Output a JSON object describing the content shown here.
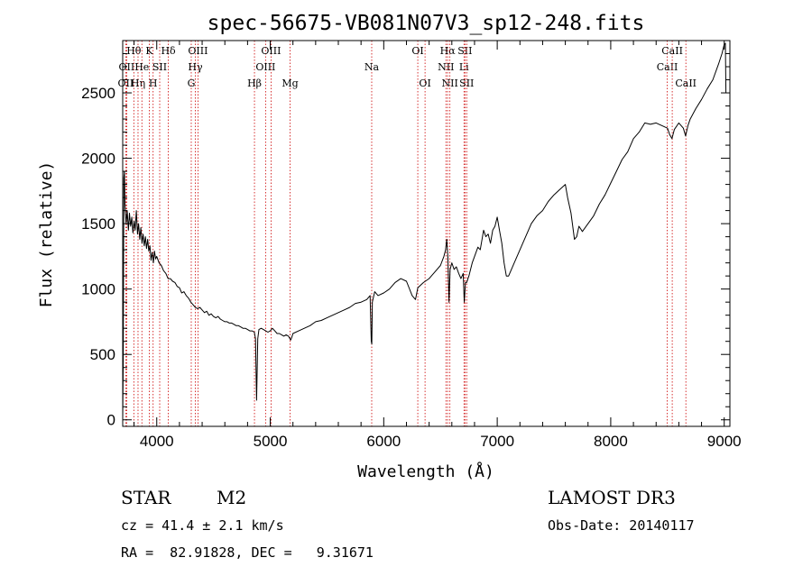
{
  "chart_data": {
    "type": "line",
    "title": "spec-56675-VB081N07V3_sp12-248.fits",
    "xlabel": "Wavelength (Å)",
    "ylabel": "Flux (relative)",
    "xlim": [
      3700,
      9050
    ],
    "ylim": [
      -50,
      2900
    ],
    "xticks": [
      4000,
      5000,
      6000,
      7000,
      8000,
      9000
    ],
    "yticks": [
      0,
      500,
      1000,
      1500,
      2000,
      2500
    ],
    "series": [
      {
        "name": "flux",
        "color": "#000000",
        "points": [
          [
            3700,
            0
          ],
          [
            3705,
            450
          ],
          [
            3710,
            1850
          ],
          [
            3715,
            1900
          ],
          [
            3720,
            1650
          ],
          [
            3730,
            1500
          ],
          [
            3740,
            1600
          ],
          [
            3750,
            1450
          ],
          [
            3760,
            1580
          ],
          [
            3770,
            1480
          ],
          [
            3780,
            1550
          ],
          [
            3790,
            1430
          ],
          [
            3800,
            1520
          ],
          [
            3810,
            1450
          ],
          [
            3820,
            1600
          ],
          [
            3830,
            1420
          ],
          [
            3840,
            1500
          ],
          [
            3850,
            1380
          ],
          [
            3860,
            1470
          ],
          [
            3870,
            1350
          ],
          [
            3880,
            1420
          ],
          [
            3890,
            1330
          ],
          [
            3900,
            1400
          ],
          [
            3910,
            1310
          ],
          [
            3920,
            1380
          ],
          [
            3930,
            1290
          ],
          [
            3940,
            1330
          ],
          [
            3950,
            1220
          ],
          [
            3960,
            1280
          ],
          [
            3970,
            1200
          ],
          [
            3980,
            1290
          ],
          [
            3990,
            1230
          ],
          [
            4000,
            1250
          ],
          [
            4020,
            1200
          ],
          [
            4040,
            1180
          ],
          [
            4060,
            1140
          ],
          [
            4080,
            1120
          ],
          [
            4100,
            1080
          ],
          [
            4120,
            1080
          ],
          [
            4140,
            1060
          ],
          [
            4160,
            1050
          ],
          [
            4180,
            1020
          ],
          [
            4200,
            1010
          ],
          [
            4220,
            970
          ],
          [
            4240,
            980
          ],
          [
            4260,
            950
          ],
          [
            4280,
            930
          ],
          [
            4300,
            900
          ],
          [
            4320,
            880
          ],
          [
            4340,
            860
          ],
          [
            4360,
            850
          ],
          [
            4380,
            860
          ],
          [
            4400,
            840
          ],
          [
            4420,
            820
          ],
          [
            4440,
            830
          ],
          [
            4460,
            800
          ],
          [
            4480,
            810
          ],
          [
            4500,
            790
          ],
          [
            4520,
            780
          ],
          [
            4540,
            790
          ],
          [
            4560,
            770
          ],
          [
            4580,
            760
          ],
          [
            4600,
            750
          ],
          [
            4620,
            750
          ],
          [
            4640,
            740
          ],
          [
            4660,
            740
          ],
          [
            4680,
            730
          ],
          [
            4700,
            720
          ],
          [
            4720,
            720
          ],
          [
            4740,
            710
          ],
          [
            4760,
            700
          ],
          [
            4780,
            700
          ],
          [
            4800,
            690
          ],
          [
            4820,
            680
          ],
          [
            4840,
            680
          ],
          [
            4860,
            670
          ],
          [
            4870,
            620
          ],
          [
            4880,
            150
          ],
          [
            4890,
            620
          ],
          [
            4900,
            690
          ],
          [
            4920,
            700
          ],
          [
            4940,
            690
          ],
          [
            4960,
            680
          ],
          [
            4980,
            670
          ],
          [
            5000,
            680
          ],
          [
            5020,
            700
          ],
          [
            5040,
            680
          ],
          [
            5060,
            660
          ],
          [
            5080,
            660
          ],
          [
            5100,
            650
          ],
          [
            5120,
            640
          ],
          [
            5140,
            650
          ],
          [
            5160,
            640
          ],
          [
            5180,
            610
          ],
          [
            5190,
            630
          ],
          [
            5200,
            660
          ],
          [
            5250,
            680
          ],
          [
            5300,
            700
          ],
          [
            5350,
            720
          ],
          [
            5400,
            750
          ],
          [
            5450,
            760
          ],
          [
            5500,
            780
          ],
          [
            5550,
            800
          ],
          [
            5600,
            820
          ],
          [
            5650,
            840
          ],
          [
            5700,
            860
          ],
          [
            5750,
            890
          ],
          [
            5800,
            900
          ],
          [
            5850,
            920
          ],
          [
            5880,
            950
          ],
          [
            5890,
            600
          ],
          [
            5895,
            580
          ],
          [
            5900,
            900
          ],
          [
            5920,
            980
          ],
          [
            5950,
            950
          ],
          [
            6000,
            970
          ],
          [
            6050,
            1000
          ],
          [
            6100,
            1050
          ],
          [
            6150,
            1080
          ],
          [
            6200,
            1060
          ],
          [
            6250,
            950
          ],
          [
            6280,
            920
          ],
          [
            6300,
            1010
          ],
          [
            6350,
            1050
          ],
          [
            6400,
            1080
          ],
          [
            6450,
            1130
          ],
          [
            6500,
            1180
          ],
          [
            6530,
            1250
          ],
          [
            6545,
            1300
          ],
          [
            6555,
            1380
          ],
          [
            6565,
            1250
          ],
          [
            6575,
            900
          ],
          [
            6585,
            1150
          ],
          [
            6600,
            1200
          ],
          [
            6620,
            1150
          ],
          [
            6640,
            1170
          ],
          [
            6660,
            1120
          ],
          [
            6680,
            1080
          ],
          [
            6700,
            1120
          ],
          [
            6710,
            900
          ],
          [
            6720,
            1050
          ],
          [
            6730,
            1050
          ],
          [
            6750,
            1100
          ],
          [
            6780,
            1200
          ],
          [
            6800,
            1250
          ],
          [
            6830,
            1320
          ],
          [
            6850,
            1300
          ],
          [
            6880,
            1450
          ],
          [
            6900,
            1400
          ],
          [
            6920,
            1420
          ],
          [
            6940,
            1350
          ],
          [
            6960,
            1450
          ],
          [
            6980,
            1480
          ],
          [
            7000,
            1550
          ],
          [
            7020,
            1450
          ],
          [
            7040,
            1350
          ],
          [
            7060,
            1200
          ],
          [
            7080,
            1100
          ],
          [
            7100,
            1100
          ],
          [
            7150,
            1200
          ],
          [
            7200,
            1300
          ],
          [
            7250,
            1400
          ],
          [
            7300,
            1500
          ],
          [
            7350,
            1560
          ],
          [
            7400,
            1600
          ],
          [
            7450,
            1670
          ],
          [
            7500,
            1720
          ],
          [
            7550,
            1760
          ],
          [
            7600,
            1800
          ],
          [
            7620,
            1700
          ],
          [
            7650,
            1580
          ],
          [
            7680,
            1380
          ],
          [
            7700,
            1400
          ],
          [
            7720,
            1480
          ],
          [
            7750,
            1440
          ],
          [
            7800,
            1500
          ],
          [
            7850,
            1560
          ],
          [
            7900,
            1650
          ],
          [
            7950,
            1720
          ],
          [
            8000,
            1810
          ],
          [
            8050,
            1900
          ],
          [
            8100,
            1990
          ],
          [
            8150,
            2050
          ],
          [
            8200,
            2150
          ],
          [
            8250,
            2200
          ],
          [
            8300,
            2270
          ],
          [
            8350,
            2260
          ],
          [
            8400,
            2270
          ],
          [
            8450,
            2250
          ],
          [
            8500,
            2230
          ],
          [
            8520,
            2180
          ],
          [
            8540,
            2150
          ],
          [
            8560,
            2220
          ],
          [
            8600,
            2270
          ],
          [
            8640,
            2230
          ],
          [
            8660,
            2170
          ],
          [
            8680,
            2250
          ],
          [
            8700,
            2300
          ],
          [
            8750,
            2380
          ],
          [
            8800,
            2450
          ],
          [
            8850,
            2530
          ],
          [
            8900,
            2600
          ],
          [
            8950,
            2720
          ],
          [
            8980,
            2800
          ],
          [
            9000,
            2870
          ],
          [
            9010,
            2880
          ],
          [
            9015,
            2500
          ]
        ]
      }
    ],
    "lines": [
      {
        "wave": 3727,
        "label": "OII",
        "row": 2
      },
      {
        "wave": 3735,
        "label": "OII",
        "row": 1
      },
      {
        "wave": 3798,
        "label": "Hθ",
        "row": 0
      },
      {
        "wave": 3835,
        "label": "Hη",
        "row": 2
      },
      {
        "wave": 3869,
        "label": "He",
        "row": 1
      },
      {
        "wave": 3934,
        "label": "K",
        "row": 0
      },
      {
        "wave": 3968,
        "label": "H",
        "row": 2
      },
      {
        "wave": 4026,
        "label": "SII",
        "row": 1
      },
      {
        "wave": 4102,
        "label": "Hδ",
        "row": 0
      },
      {
        "wave": 4304,
        "label": "G",
        "row": 2
      },
      {
        "wave": 4340,
        "label": "Hγ",
        "row": 1
      },
      {
        "wave": 4363,
        "label": "OIII",
        "row": 0
      },
      {
        "wave": 4861,
        "label": "Hβ",
        "row": 2
      },
      {
        "wave": 4959,
        "label": "OIII",
        "row": 1
      },
      {
        "wave": 5007,
        "label": "OIII",
        "row": 0
      },
      {
        "wave": 5175,
        "label": "Mg",
        "row": 2
      },
      {
        "wave": 5894,
        "label": "Na",
        "row": 1
      },
      {
        "wave": 6300,
        "label": "OI",
        "row": 0
      },
      {
        "wave": 6364,
        "label": "OI",
        "row": 2
      },
      {
        "wave": 6548,
        "label": "NII",
        "row": 1
      },
      {
        "wave": 6563,
        "label": "Hα",
        "row": 0
      },
      {
        "wave": 6583,
        "label": "NII",
        "row": 2
      },
      {
        "wave": 6707,
        "label": "Li",
        "row": 1
      },
      {
        "wave": 6716,
        "label": "SII",
        "row": 0
      },
      {
        "wave": 6731,
        "label": "SII",
        "row": 2
      },
      {
        "wave": 8498,
        "label": "CaII",
        "row": 1
      },
      {
        "wave": 8542,
        "label": "CaII",
        "row": 0
      },
      {
        "wave": 8662,
        "label": "CaII",
        "row": 2
      }
    ],
    "line_marker_color": "#cc0000"
  },
  "info": {
    "object_class": "STAR",
    "subclass": "M2",
    "cz": "cz = 41.4 ± 2.1 km/s",
    "coords": "RA =  82.91828, DEC =   9.31671",
    "survey": "LAMOST DR3",
    "obs_date": "Obs-Date: 20140117"
  }
}
